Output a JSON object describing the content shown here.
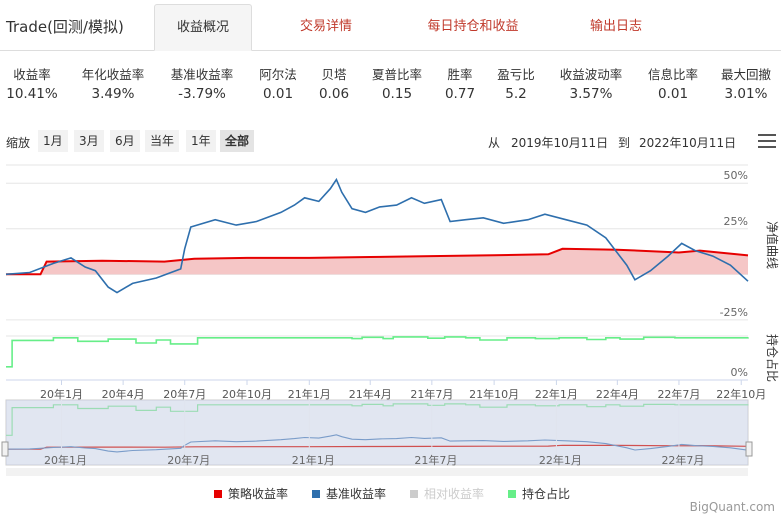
{
  "app": {
    "title": "Trade(回测/模拟)"
  },
  "tabs": [
    {
      "label": "收益概况",
      "active": true
    },
    {
      "label": "交易详情",
      "active": false
    },
    {
      "label": "每日持仓和收益",
      "active": false
    },
    {
      "label": "输出日志",
      "active": false
    }
  ],
  "metrics": [
    {
      "label": "收益率",
      "value": "10.41%"
    },
    {
      "label": "年化收益率",
      "value": "3.49%"
    },
    {
      "label": "基准收益率",
      "value": "-3.79%"
    },
    {
      "label": "阿尔法",
      "value": "0.01"
    },
    {
      "label": "贝塔",
      "value": "0.06"
    },
    {
      "label": "夏普比率",
      "value": "0.15"
    },
    {
      "label": "胜率",
      "value": "0.77"
    },
    {
      "label": "盈亏比",
      "value": "5.2"
    },
    {
      "label": "收益波动率",
      "value": "3.57%"
    },
    {
      "label": "信息比率",
      "value": "0.01"
    },
    {
      "label": "最大回撤",
      "value": "3.01%"
    }
  ],
  "toolbar": {
    "zoom_label": "缩放",
    "zoom_buttons": [
      "1月",
      "3月",
      "6月",
      "当年",
      "1年",
      "全部"
    ],
    "selected": "全部",
    "from_label": "从",
    "from_date": "2019年10月11日",
    "to_label": "到",
    "to_date": "2022年10月11日"
  },
  "colors": {
    "strategy": "#e60000",
    "strategy_fill": "#f5c6c6",
    "benchmark": "#2e6fad",
    "relative": "#cccccc",
    "position": "#66ee88",
    "accent": "#c0392b",
    "date": "#1e5fb4"
  },
  "chart_data": {
    "type": "line",
    "x_type": "date",
    "x_range": [
      "2019-10-11",
      "2022-10-11"
    ],
    "main_panel": {
      "right_axis_title": "净值曲线",
      "yticks": [
        50,
        25,
        0,
        -25
      ],
      "ytick_labels": [
        "50%",
        "25%",
        "0%",
        "-25%"
      ],
      "ylim": [
        -30,
        60
      ]
    },
    "position_panel": {
      "right_axis_title": "持仓占比",
      "ytick_labels": [
        "0%"
      ],
      "ylim": [
        0,
        100
      ]
    },
    "xtick_labels": [
      "20年1月",
      "20年4月",
      "20年7月",
      "20年10月",
      "21年1月",
      "21年4月",
      "21年7月",
      "21年10月",
      "22年1月",
      "22年4月",
      "22年7月",
      "22年10月"
    ],
    "navigator_labels": [
      "20年1月",
      "20年7月",
      "21年1月",
      "21年7月",
      "22年1月",
      "22年7月"
    ],
    "series": [
      {
        "name": "策略收益率",
        "key": "strategy",
        "x": [
          "2019-10-11",
          "2019-12-01",
          "2019-12-10",
          "2020-03-01",
          "2020-06-01",
          "2020-07-15",
          "2020-10-01",
          "2021-01-01",
          "2021-04-01",
          "2021-07-01",
          "2021-10-01",
          "2021-12-20",
          "2022-01-10",
          "2022-04-01",
          "2022-07-01",
          "2022-08-01",
          "2022-10-11"
        ],
        "y": [
          0,
          0,
          7,
          7.5,
          7,
          8.5,
          9,
          9,
          9.5,
          10,
          10.5,
          11,
          14,
          13.5,
          12,
          13,
          10.41
        ]
      },
      {
        "name": "基准收益率",
        "key": "benchmark",
        "x": [
          "2019-10-11",
          "2019-11-15",
          "2019-12-20",
          "2020-01-15",
          "2020-02-05",
          "2020-02-20",
          "2020-03-10",
          "2020-03-23",
          "2020-04-15",
          "2020-05-20",
          "2020-06-25",
          "2020-07-01",
          "2020-07-10",
          "2020-08-15",
          "2020-09-15",
          "2020-10-15",
          "2020-11-20",
          "2020-12-10",
          "2020-12-25",
          "2021-01-15",
          "2021-02-01",
          "2021-02-10",
          "2021-02-18",
          "2021-03-05",
          "2021-03-25",
          "2021-04-15",
          "2021-05-10",
          "2021-06-01",
          "2021-06-20",
          "2021-07-15",
          "2021-07-28",
          "2021-08-20",
          "2021-09-15",
          "2021-10-15",
          "2021-11-20",
          "2021-12-15",
          "2022-01-15",
          "2022-02-15",
          "2022-03-15",
          "2022-04-15",
          "2022-04-27",
          "2022-05-20",
          "2022-06-15",
          "2022-07-05",
          "2022-07-25",
          "2022-08-20",
          "2022-09-15",
          "2022-10-11"
        ],
        "y": [
          0,
          1,
          6,
          9,
          4,
          2,
          -7,
          -10,
          -5,
          -2,
          3,
          14,
          26,
          30,
          27,
          29,
          34,
          38,
          42,
          40,
          47,
          52,
          45,
          36,
          34,
          37,
          38,
          42,
          39,
          41,
          29,
          30,
          31,
          28,
          30,
          33,
          30,
          27,
          20,
          5,
          -3,
          2,
          10,
          17,
          13,
          10,
          5,
          -3.79
        ]
      },
      {
        "name": "相对收益率",
        "key": "relative",
        "visible": false,
        "x": [],
        "y": []
      },
      {
        "name": "持仓占比",
        "key": "position",
        "x": [
          "2019-10-11",
          "2019-10-20",
          "2019-12-20",
          "2020-01-25",
          "2020-03-10",
          "2020-04-20",
          "2020-05-20",
          "2020-06-10",
          "2020-07-20",
          "2021-03-05",
          "2021-03-20",
          "2021-04-20",
          "2021-05-05",
          "2021-06-25",
          "2021-07-20",
          "2021-08-20",
          "2021-09-10",
          "2021-10-20",
          "2021-12-01",
          "2022-01-05",
          "2022-02-15",
          "2022-03-15",
          "2022-04-05",
          "2022-05-10",
          "2022-06-25",
          "2022-10-11"
        ],
        "y": [
          30,
          90,
          96,
          88,
          93,
          84,
          91,
          82,
          96,
          94,
          97,
          94,
          98,
          95,
          98,
          96,
          91,
          96,
          94,
          96,
          92,
          96,
          93,
          97,
          96,
          97
        ]
      }
    ]
  }
}
